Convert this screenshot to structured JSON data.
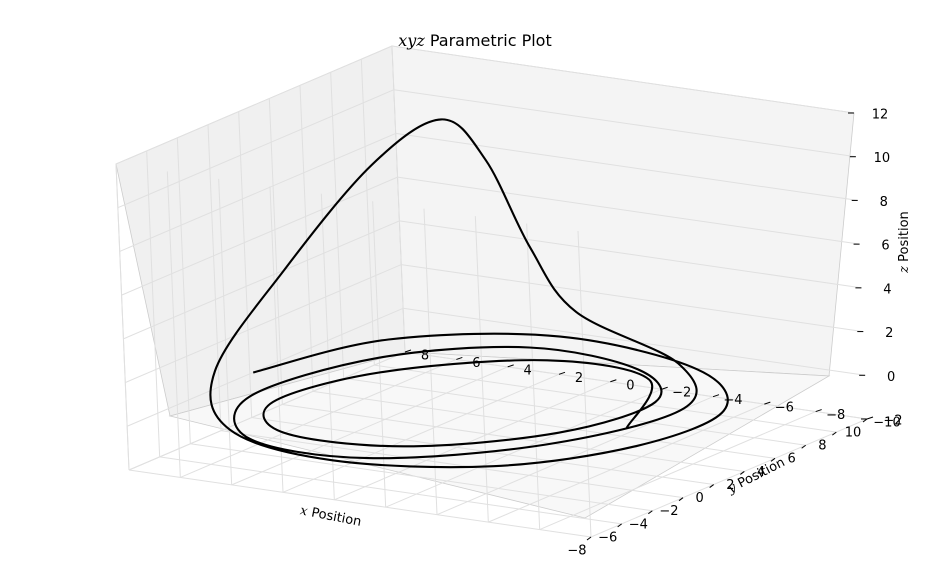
{
  "chart_data": {
    "type": "line",
    "projection": "3d",
    "title": {
      "math": "xyz",
      "text": " Parametric Plot"
    },
    "xlabel": {
      "math": "x",
      "text": " Position"
    },
    "ylabel": {
      "math": "y",
      "text": " Position"
    },
    "zlabel": {
      "math": "z",
      "text": " Position"
    },
    "xlim": [
      -8,
      10
    ],
    "ylim": [
      -10,
      8
    ],
    "zlim": [
      -2,
      12
    ],
    "xticks": [
      "−8",
      "−6",
      "−4",
      "−2",
      "0",
      "2",
      "4",
      "6",
      "8",
      "10"
    ],
    "yticks": [
      "−10",
      "−8",
      "−6",
      "−4",
      "−2",
      "0",
      "2",
      "4",
      "6",
      "8"
    ],
    "zticks": [
      "−2",
      "0",
      "2",
      "4",
      "6",
      "8",
      "10",
      "12"
    ],
    "grid": true,
    "colors": {
      "line": "#000000",
      "pane": "#f2f2f2",
      "grid": "#e0e0e0"
    },
    "series": [
      {
        "style": "rossler-attractor",
        "x": [
          0,
          5.85,
          6.3,
          2.33,
          -2.88,
          -6.18,
          -5.74,
          -1.7,
          3.32,
          6.62,
          7.25,
          3.75,
          -2.66,
          -7.41,
          -7.68,
          -3.23,
          3.04,
          7.51,
          8.74,
          7.85,
          7.2,
          6.9,
          5.52,
          2.1,
          -2.96,
          -7.06,
          -8.53,
          -6.52,
          -1.84,
          3.48,
          7.46,
          8.38,
          5.71,
          0.09
        ],
        "y": [
          -6.68,
          -4.06,
          0.18,
          4.19,
          5.38,
          2.96,
          -1.48,
          -5.05,
          -5.82,
          -3.17,
          1.44,
          5.2,
          6.41,
          3.59,
          -1.18,
          -5.48,
          -7.1,
          -4.22,
          0.46,
          1.6,
          2.8,
          4.3,
          6.25,
          7.74,
          7.55,
          4.56,
          -0.32,
          -5.39,
          -8.2,
          -8.39,
          -4.99,
          0.9,
          6.0,
          7.92
        ],
        "z": [
          0.02,
          0.04,
          0.06,
          0.04,
          0.02,
          0.01,
          0.02,
          0.04,
          0.07,
          0.12,
          0.15,
          0.09,
          0.03,
          0.01,
          0.01,
          0.03,
          0.08,
          0.3,
          1.5,
          4.5,
          8.5,
          10.2,
          8.2,
          4.2,
          1.1,
          0.15,
          0.02,
          0.01,
          0.02,
          0.06,
          0.18,
          0.4,
          0.2,
          0.05
        ]
      }
    ]
  }
}
